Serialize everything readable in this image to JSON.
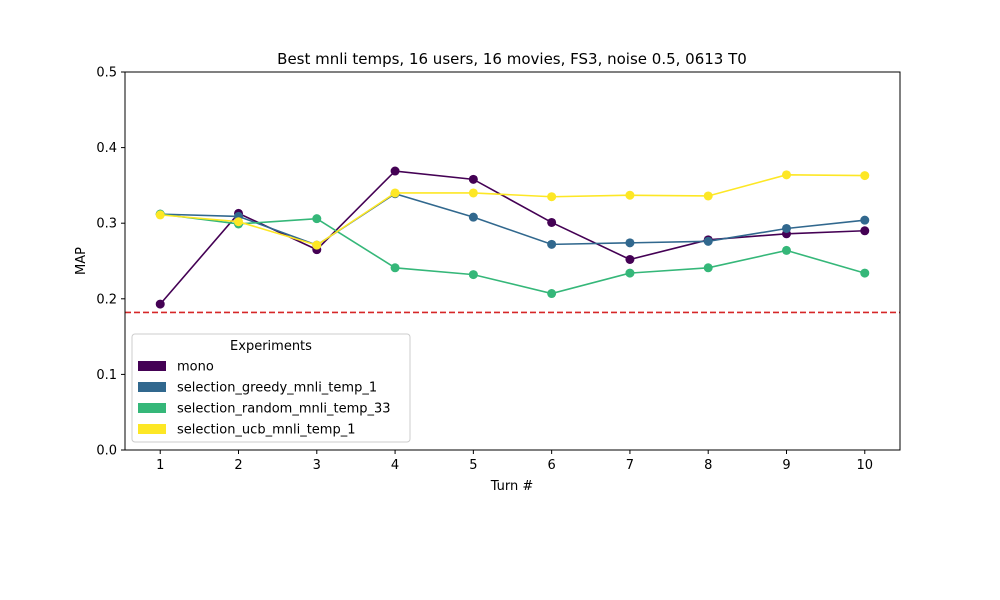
{
  "chart_data": {
    "type": "line",
    "title": "Best mnli temps, 16 users, 16 movies, FS3, noise 0.5, 0613 T0",
    "xlabel": "Turn #",
    "ylabel": "MAP",
    "x": [
      1,
      2,
      3,
      4,
      5,
      6,
      7,
      8,
      9,
      10
    ],
    "xlim": [
      0.55,
      10.45
    ],
    "ylim": [
      0,
      0.5
    ],
    "xticks": [
      "1",
      "2",
      "3",
      "4",
      "5",
      "6",
      "7",
      "8",
      "9",
      "10"
    ],
    "yticks": [
      "0.0",
      "0.1",
      "0.2",
      "0.3",
      "0.4",
      "0.5"
    ],
    "grid": false,
    "baseline": {
      "y": 0.182,
      "color": "#d62728",
      "style": "dashed"
    },
    "legend": {
      "title": "Experiments",
      "placement": "lower-left"
    },
    "series": [
      {
        "name": "mono",
        "color": "#440154",
        "values": [
          0.193,
          0.313,
          0.265,
          0.369,
          0.358,
          0.301,
          0.252,
          0.278,
          0.286,
          0.29
        ]
      },
      {
        "name": "selection_greedy_mnli_temp_1",
        "color": "#31688e",
        "values": [
          0.312,
          0.309,
          0.271,
          0.339,
          0.308,
          0.272,
          0.274,
          0.276,
          0.293,
          0.304
        ]
      },
      {
        "name": "selection_random_mnli_temp_33",
        "color": "#35b779",
        "values": [
          0.312,
          0.299,
          0.306,
          0.241,
          0.232,
          0.207,
          0.234,
          0.241,
          0.264,
          0.234
        ]
      },
      {
        "name": "selection_ucb_mnli_temp_1",
        "color": "#fde725",
        "values": [
          0.311,
          0.302,
          0.271,
          0.34,
          0.34,
          0.335,
          0.337,
          0.336,
          0.364,
          0.363
        ]
      }
    ]
  }
}
